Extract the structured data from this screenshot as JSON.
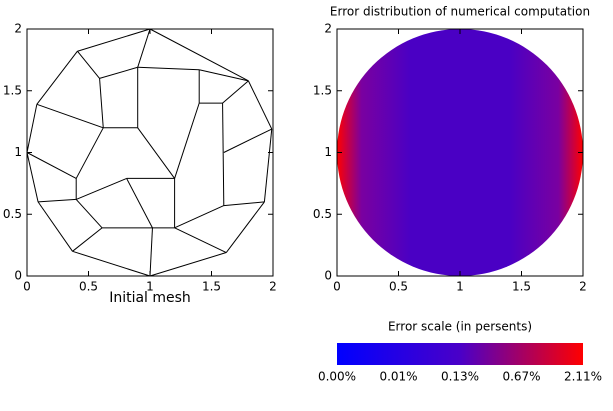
{
  "chart_data": [
    {
      "type": "mesh",
      "title": "Initial mesh",
      "xlim": [
        0,
        2
      ],
      "ylim": [
        0,
        2
      ],
      "xticks": [
        0,
        0.5,
        1,
        1.5,
        2
      ],
      "yticks": [
        0,
        0.5,
        1,
        1.5,
        2
      ],
      "color": "#000000",
      "edges": [
        [
          1.0,
          2.0,
          1.8,
          1.58
        ],
        [
          1.8,
          1.58,
          1.99,
          1.19
        ],
        [
          1.99,
          1.19,
          1.93,
          0.6
        ],
        [
          1.93,
          0.6,
          1.62,
          0.19
        ],
        [
          1.62,
          0.19,
          1.0,
          0.0
        ],
        [
          1.0,
          0.0,
          0.37,
          0.2
        ],
        [
          0.37,
          0.2,
          0.09,
          0.6
        ],
        [
          0.09,
          0.6,
          0.0,
          1.0
        ],
        [
          0.0,
          1.0,
          0.08,
          1.39
        ],
        [
          0.08,
          1.39,
          0.41,
          1.82
        ],
        [
          0.41,
          1.82,
          1.0,
          2.0
        ],
        [
          0.41,
          1.82,
          0.59,
          1.6
        ],
        [
          0.59,
          1.6,
          0.9,
          1.69
        ],
        [
          0.9,
          1.69,
          1.0,
          2.0
        ],
        [
          0.9,
          1.69,
          0.9,
          1.2
        ],
        [
          0.59,
          1.6,
          0.62,
          1.2
        ],
        [
          0.62,
          1.2,
          0.9,
          1.2
        ],
        [
          0.9,
          1.69,
          1.4,
          1.67
        ],
        [
          1.4,
          1.67,
          1.8,
          1.58
        ],
        [
          1.4,
          1.67,
          1.4,
          1.4
        ],
        [
          1.4,
          1.4,
          1.59,
          1.4
        ],
        [
          1.59,
          1.4,
          1.8,
          1.58
        ],
        [
          0.08,
          1.39,
          0.62,
          1.2
        ],
        [
          0.0,
          1.0,
          0.4,
          0.79
        ],
        [
          0.4,
          0.79,
          0.4,
          0.62
        ],
        [
          0.4,
          0.62,
          0.09,
          0.6
        ],
        [
          0.62,
          1.2,
          0.4,
          0.79
        ],
        [
          0.9,
          1.2,
          1.2,
          0.79
        ],
        [
          0.4,
          0.62,
          0.81,
          0.79
        ],
        [
          0.81,
          0.79,
          1.2,
          0.79
        ],
        [
          0.81,
          0.79,
          1.02,
          0.39
        ],
        [
          0.4,
          0.62,
          0.61,
          0.39
        ],
        [
          0.61,
          0.39,
          0.37,
          0.2
        ],
        [
          0.61,
          0.39,
          1.02,
          0.39
        ],
        [
          1.02,
          0.39,
          1.0,
          0.0
        ],
        [
          1.02,
          0.39,
          1.2,
          0.39
        ],
        [
          1.2,
          0.39,
          1.2,
          0.79
        ],
        [
          1.2,
          0.79,
          1.4,
          1.4
        ],
        [
          1.2,
          0.39,
          1.62,
          0.19
        ],
        [
          1.59,
          1.4,
          1.6,
          0.57
        ],
        [
          1.6,
          0.57,
          1.2,
          0.39
        ],
        [
          1.6,
          0.57,
          1.93,
          0.6
        ],
        [
          1.6,
          1.0,
          1.99,
          1.19
        ]
      ]
    },
    {
      "type": "field",
      "title": "Error distribution of numerical computation",
      "xlim": [
        0,
        2
      ],
      "ylim": [
        0,
        2
      ],
      "xticks": [
        0,
        0.5,
        1,
        1.5,
        2
      ],
      "yticks": [
        0,
        0.5,
        1,
        1.5,
        2
      ],
      "colorbar": {
        "title": "Error scale (in persents)",
        "colors": [
          "#0000ff",
          "#4a00c8",
          "#ff0000"
        ],
        "ticks": [
          {
            "value": 0,
            "label": "0.00%"
          },
          {
            "value": 0.01,
            "label": "0.01%"
          },
          {
            "value": 0.13,
            "label": "0.13%"
          },
          {
            "value": 0.67,
            "label": "0.67%"
          },
          {
            "value": 2.11,
            "label": "2.11%"
          }
        ]
      }
    }
  ]
}
